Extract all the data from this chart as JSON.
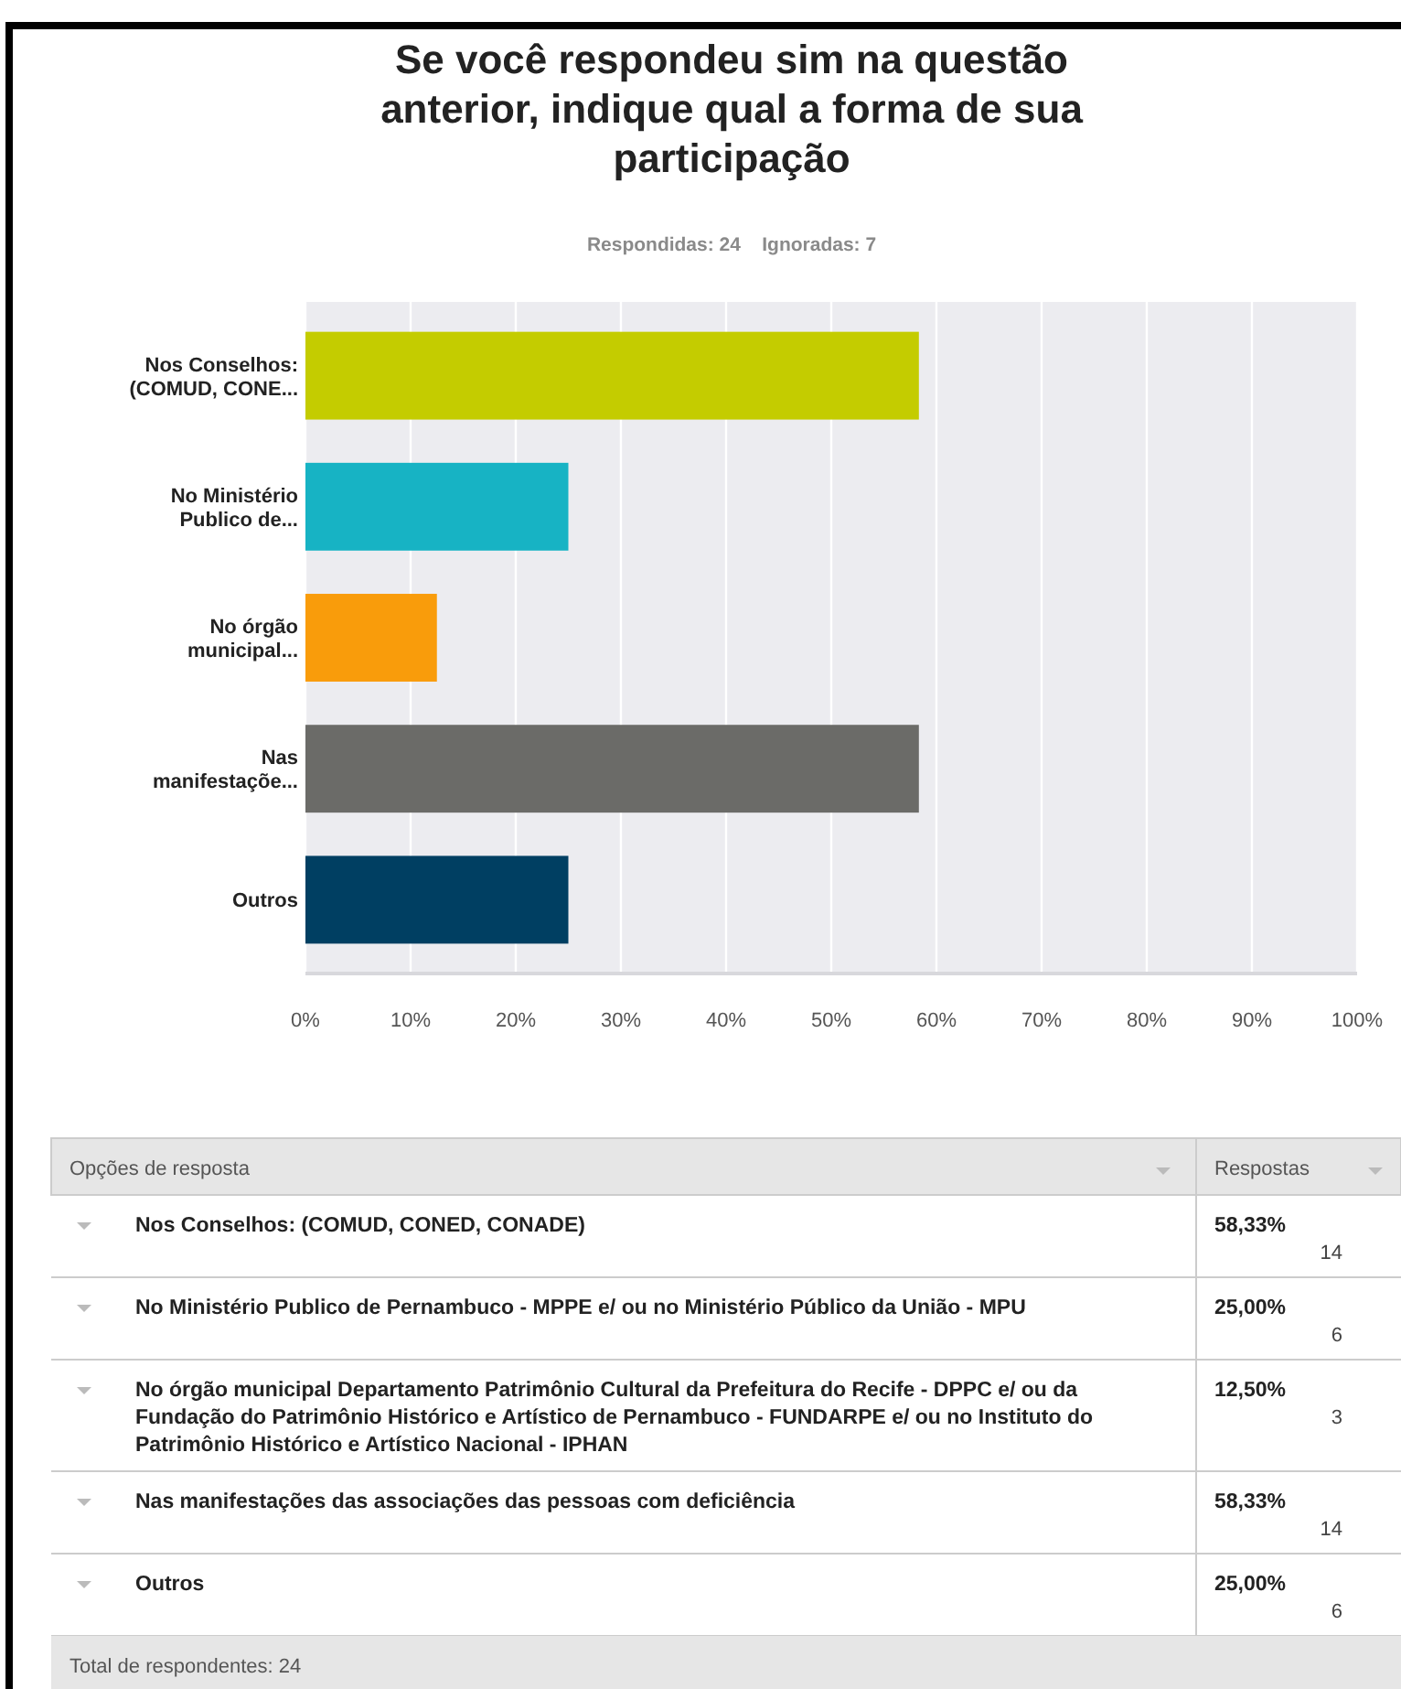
{
  "chart_data": {
    "type": "bar",
    "orientation": "horizontal",
    "title": "Se você respondeu sim na questão anterior, indique qual a forma de sua participação",
    "subtitle": "Respondidas: 24    Ignoradas: 7",
    "categories": [
      "Nos Conselhos: (COMUD, CONE...",
      "No Ministério Publico de...",
      "No órgão municipal...",
      "Nas manifestaçõe...",
      "Outros"
    ],
    "values": [
      58.33,
      25,
      12.5,
      58.33,
      25
    ],
    "colors": [
      "#c4cc00",
      "#17b3c4",
      "#f99c0b",
      "#6b6b68",
      "#003f62"
    ],
    "xlim": [
      0,
      100
    ],
    "xticks": [
      {
        "value": 0,
        "label": "0%"
      },
      {
        "value": 10,
        "label": "10%"
      },
      {
        "value": 20,
        "label": "20%"
      },
      {
        "value": 30,
        "label": "30%"
      },
      {
        "value": 40,
        "label": "40%"
      },
      {
        "value": 50,
        "label": "50%"
      },
      {
        "value": 60,
        "label": "60%"
      },
      {
        "value": 70,
        "label": "70%"
      },
      {
        "value": 80,
        "label": "80%"
      },
      {
        "value": 90,
        "label": "90%"
      },
      {
        "value": 100,
        "label": "100%"
      }
    ],
    "grid": "x",
    "annotations": [
      "Opções de resposta",
      "Respostas",
      "Nos Conselhos: (COMUD, CONED, CONADE)",
      "No Ministério Publico de Pernambuco - MPPE e/ ou no Ministério Público da União - MPU",
      "No órgão municipal Departamento Patrimônio Cultural da Prefeitura do Recife - DPPC e/ ou da Fundação do Patrimônio Histórico e Artístico de Pernambuco - FUNDARPE e/ ou no Instituto do Patrimônio Histórico e Artístico Nacional - IPHAN",
      "Nas manifestações das associações das pessoas com deficiência",
      "Outros",
      "58,33%",
      "25,00%",
      "12,50%",
      "58,33%",
      "25,00%",
      "14",
      "6",
      "3",
      "14",
      "6",
      "Total de respondentes: 24"
    ]
  }
}
